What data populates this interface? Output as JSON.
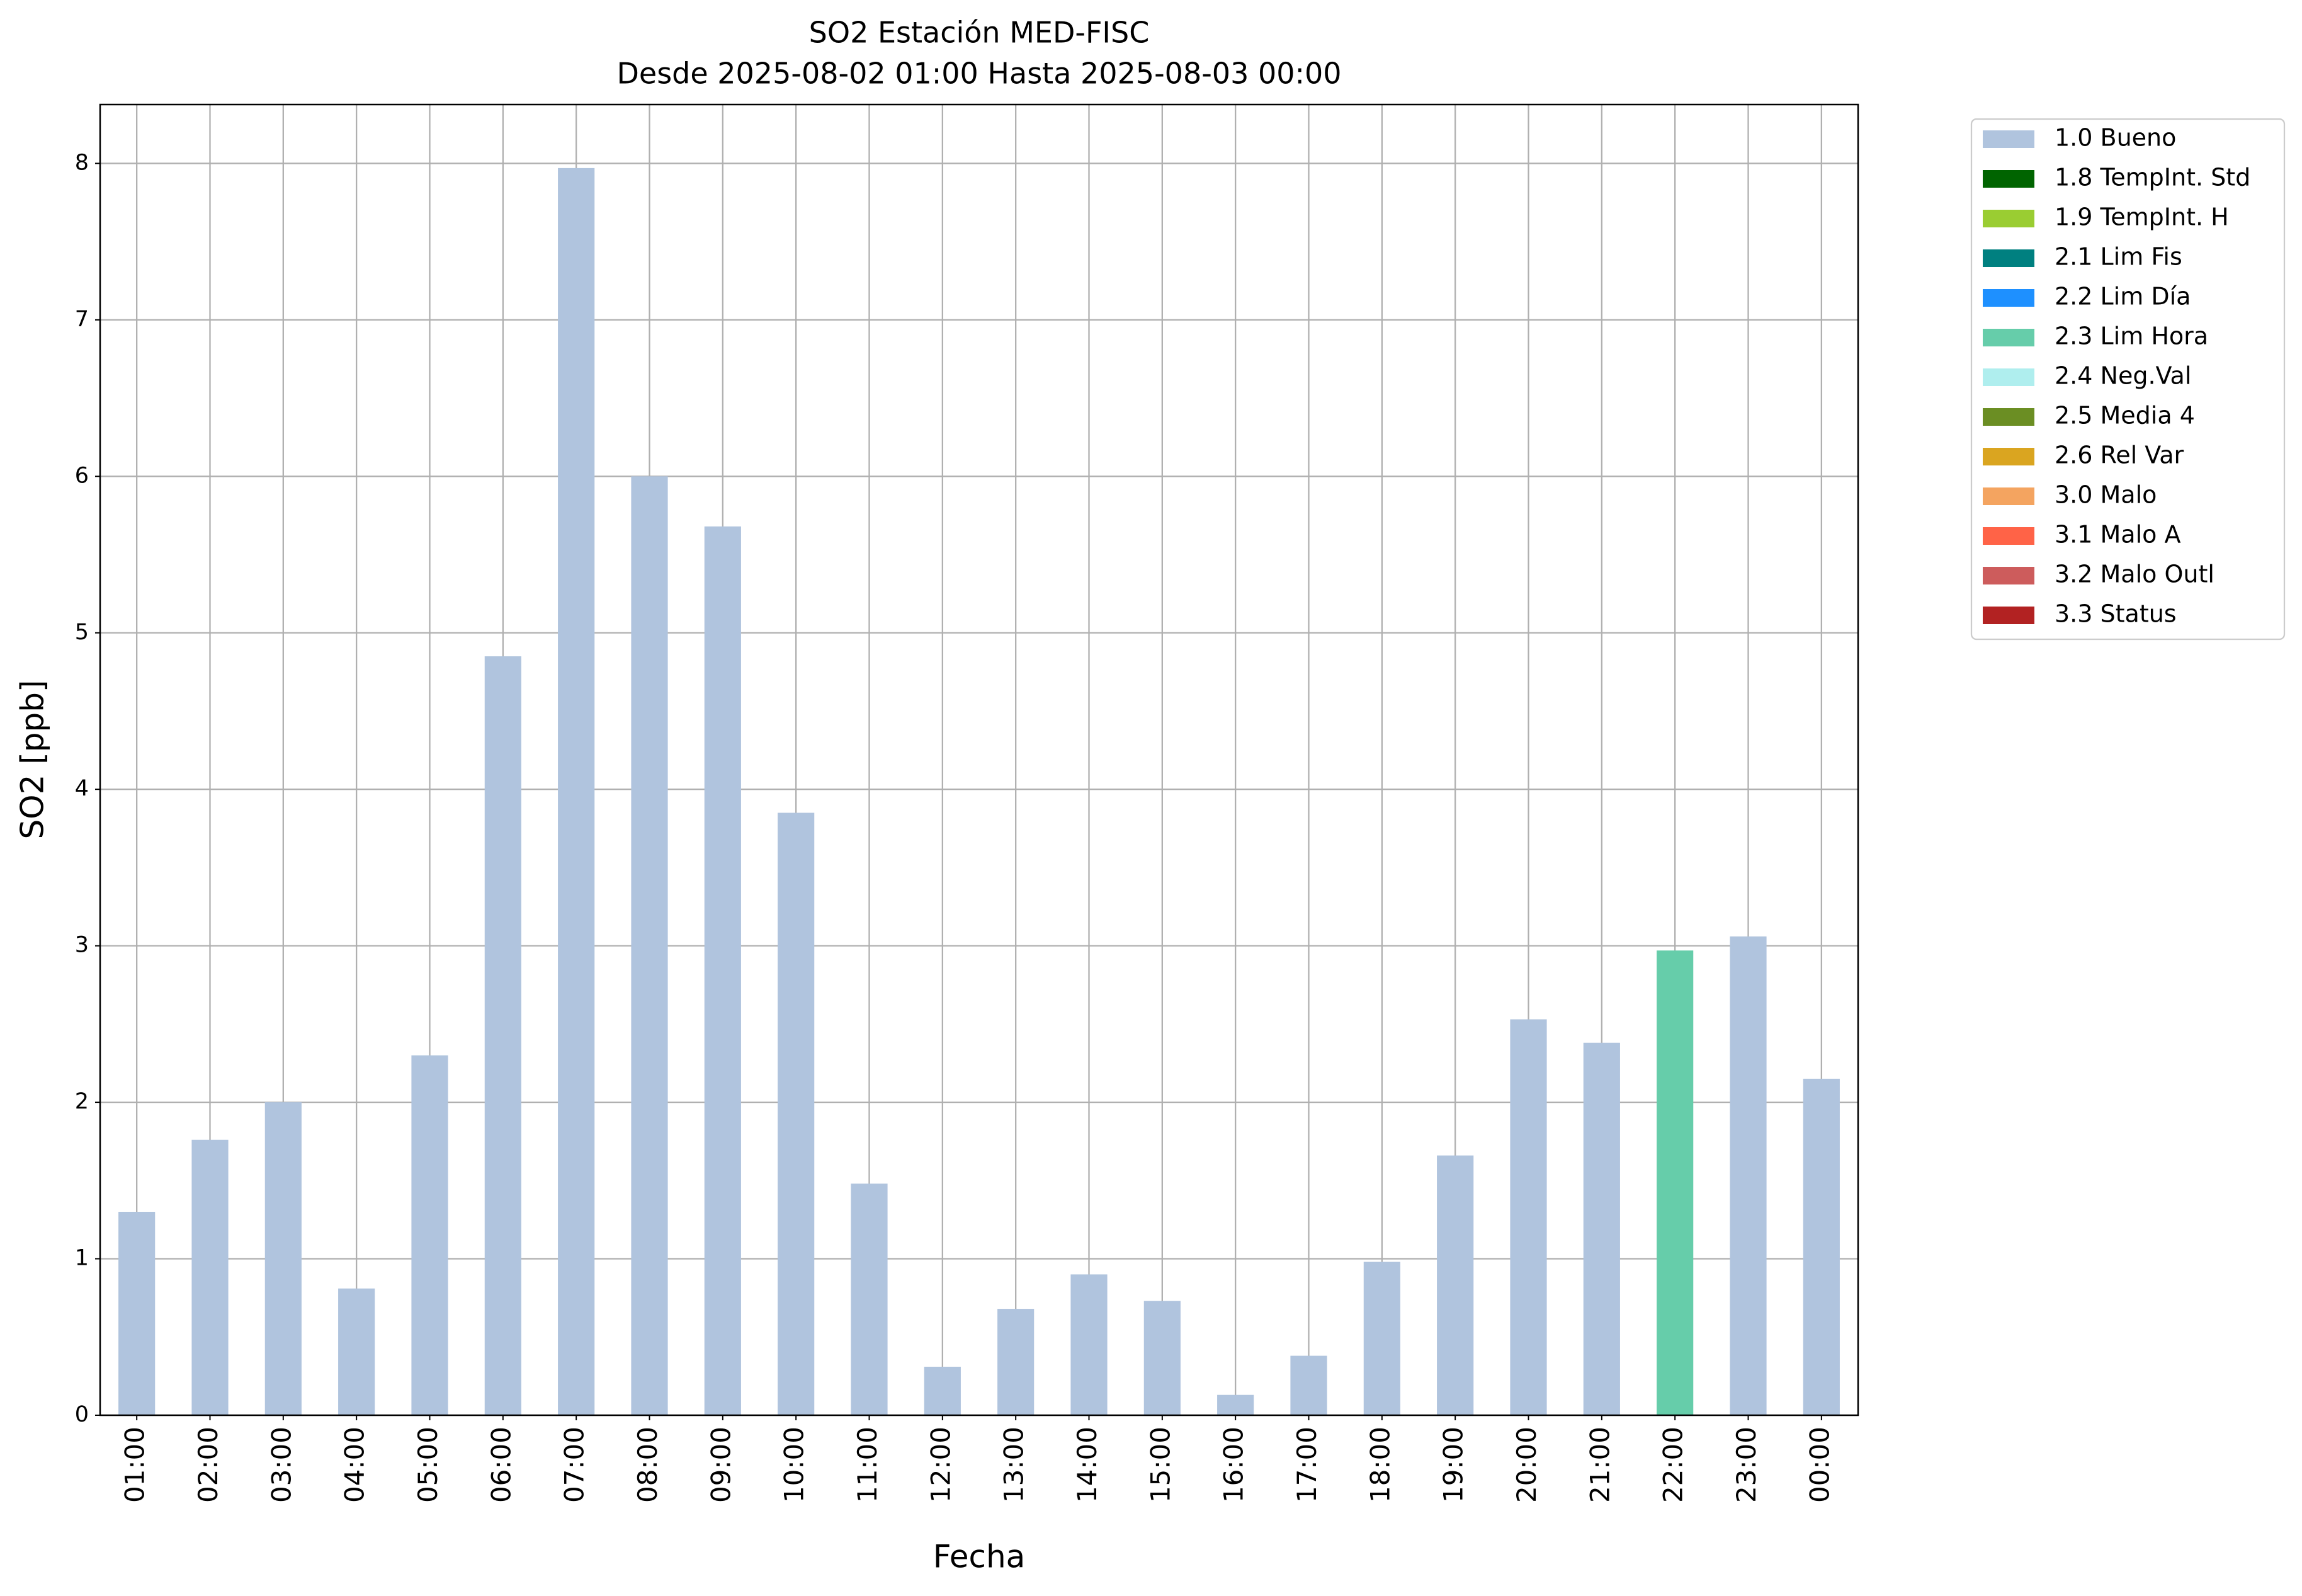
{
  "chart_data": {
    "type": "stacked_bar",
    "title": "SO2 Estación MED-FISC",
    "subtitle": "Desde 2025-08-02 01:00 Hasta 2025-08-03 00:00",
    "x_label": "Fecha",
    "y_label": "SO2 [ppb]",
    "categories": [
      "01:00",
      "02:00",
      "03:00",
      "04:00",
      "05:00",
      "06:00",
      "07:00",
      "08:00",
      "09:00",
      "10:00",
      "11:00",
      "12:00",
      "13:00",
      "14:00",
      "15:00",
      "16:00",
      "17:00",
      "18:00",
      "19:00",
      "20:00",
      "21:00",
      "22:00",
      "23:00",
      "00:00"
    ],
    "series": [
      {
        "name": "1.0 Bueno",
        "color": "#b0c4de",
        "values": [
          1.3,
          1.76,
          2.0,
          0.81,
          2.3,
          4.85,
          7.97,
          6.0,
          5.68,
          3.85,
          1.48,
          0.31,
          0.68,
          0.9,
          0.73,
          0.13,
          0.38,
          0.98,
          1.66,
          2.53,
          2.38,
          null,
          3.06,
          2.15
        ]
      },
      {
        "name": "1.8 TempInt. Std",
        "color": "#006400",
        "values": [
          null,
          null,
          null,
          null,
          null,
          null,
          null,
          null,
          null,
          null,
          null,
          null,
          null,
          null,
          null,
          null,
          null,
          null,
          null,
          null,
          null,
          null,
          null,
          null
        ]
      },
      {
        "name": "1.9 TempInt. H",
        "color": "#9acd32",
        "values": [
          null,
          null,
          null,
          null,
          null,
          null,
          null,
          null,
          null,
          null,
          null,
          null,
          null,
          null,
          null,
          null,
          null,
          null,
          null,
          null,
          null,
          null,
          null,
          null
        ]
      },
      {
        "name": "2.1 Lim Fis",
        "color": "#008080",
        "values": [
          null,
          null,
          null,
          null,
          null,
          null,
          null,
          null,
          null,
          null,
          null,
          null,
          null,
          null,
          null,
          null,
          null,
          null,
          null,
          null,
          null,
          null,
          null,
          null
        ]
      },
      {
        "name": "2.2 Lim Día",
        "color": "#1e90ff",
        "values": [
          null,
          null,
          null,
          null,
          null,
          null,
          null,
          null,
          null,
          null,
          null,
          null,
          null,
          null,
          null,
          null,
          null,
          null,
          null,
          null,
          null,
          null,
          null,
          null
        ]
      },
      {
        "name": "2.3 Lim Hora",
        "color": "#66cdaa",
        "values": [
          null,
          null,
          null,
          null,
          null,
          null,
          null,
          null,
          null,
          null,
          null,
          null,
          null,
          null,
          null,
          null,
          null,
          null,
          null,
          null,
          null,
          2.97,
          null,
          null
        ]
      },
      {
        "name": "2.4 Neg.Val",
        "color": "#afeeee",
        "values": [
          null,
          null,
          null,
          null,
          null,
          null,
          null,
          null,
          null,
          null,
          null,
          null,
          null,
          null,
          null,
          null,
          null,
          null,
          null,
          null,
          null,
          null,
          null,
          null
        ]
      },
      {
        "name": "2.5 Media 4",
        "color": "#6b8e23",
        "values": [
          null,
          null,
          null,
          null,
          null,
          null,
          null,
          null,
          null,
          null,
          null,
          null,
          null,
          null,
          null,
          null,
          null,
          null,
          null,
          null,
          null,
          null,
          null,
          null
        ]
      },
      {
        "name": "2.6 Rel Var",
        "color": "#daa520",
        "values": [
          null,
          null,
          null,
          null,
          null,
          null,
          null,
          null,
          null,
          null,
          null,
          null,
          null,
          null,
          null,
          null,
          null,
          null,
          null,
          null,
          null,
          null,
          null,
          null
        ]
      },
      {
        "name": "3.0 Malo",
        "color": "#f4a460",
        "values": [
          null,
          null,
          null,
          null,
          null,
          null,
          null,
          null,
          null,
          null,
          null,
          null,
          null,
          null,
          null,
          null,
          null,
          null,
          null,
          null,
          null,
          null,
          null,
          null
        ]
      },
      {
        "name": "3.1 Malo A",
        "color": "#ff6347",
        "values": [
          null,
          null,
          null,
          null,
          null,
          null,
          null,
          null,
          null,
          null,
          null,
          null,
          null,
          null,
          null,
          null,
          null,
          null,
          null,
          null,
          null,
          null,
          null,
          null
        ]
      },
      {
        "name": "3.2 Malo Outl",
        "color": "#cd5c5c",
        "values": [
          null,
          null,
          null,
          null,
          null,
          null,
          null,
          null,
          null,
          null,
          null,
          null,
          null,
          null,
          null,
          null,
          null,
          null,
          null,
          null,
          null,
          null,
          null,
          null
        ]
      },
      {
        "name": "3.3 Status",
        "color": "#b22222",
        "values": [
          null,
          null,
          null,
          null,
          null,
          null,
          null,
          null,
          null,
          null,
          null,
          null,
          null,
          null,
          null,
          null,
          null,
          null,
          null,
          null,
          null,
          null,
          null,
          null
        ]
      }
    ],
    "ylim": [
      0,
      8.376
    ],
    "yticks": [
      0,
      1,
      2,
      3,
      4,
      5,
      6,
      7,
      8
    ],
    "grid": true,
    "legend": "outside-upper-right"
  }
}
